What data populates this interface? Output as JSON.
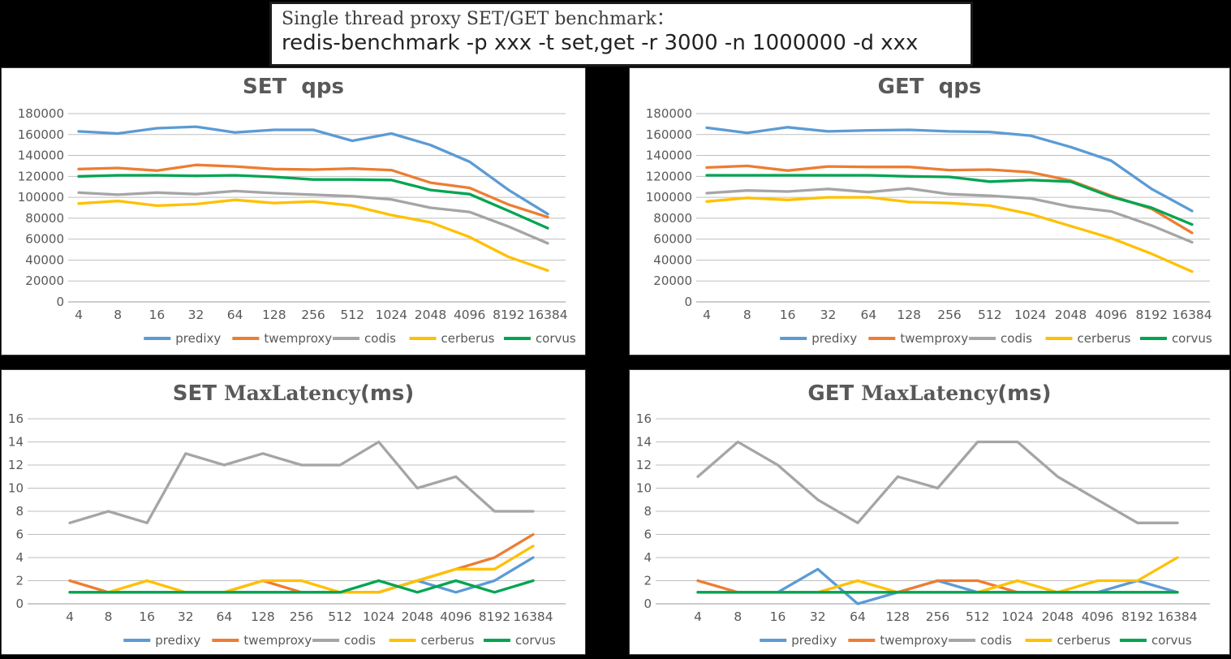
{
  "header": {
    "line1": "Single thread proxy SET/GET benchmark：",
    "line2": "redis-benchmark -p xxx -t set,get -r 3000 -n 1000000 -d xxx"
  },
  "colors": {
    "predixy": "#5B9BD5",
    "twemproxy": "#ED7D31",
    "codis": "#A5A5A5",
    "cerberus": "#FFC000",
    "corvus": "#00A550",
    "axis_text": "#595959",
    "gridline": "#BFBFBF",
    "zero_line": "#999999"
  },
  "legend_items": [
    "predixy",
    "twemproxy",
    "codis",
    "cerberus",
    "corvus"
  ],
  "chart_data": [
    {
      "id": "set_qps",
      "type": "line",
      "title": "SET  qps",
      "title_parts": {
        "t1": "SET  qps",
        "t2": "",
        "t3": ""
      },
      "categories": [
        "4",
        "8",
        "16",
        "32",
        "64",
        "128",
        "256",
        "512",
        "1024",
        "2048",
        "4096",
        "8192",
        "16384"
      ],
      "ylim": [
        0,
        180000
      ],
      "ytick_step": 20000,
      "grid": true,
      "legend_position": "bottom",
      "series": [
        {
          "name": "predixy",
          "values": [
            163000,
            161000,
            166000,
            167500,
            162000,
            164500,
            164500,
            154000,
            161000,
            150000,
            134000,
            107000,
            84000
          ]
        },
        {
          "name": "twemproxy",
          "values": [
            127000,
            128000,
            125500,
            131000,
            129500,
            127000,
            126500,
            127500,
            126000,
            114000,
            109000,
            93000,
            81000
          ]
        },
        {
          "name": "codis",
          "values": [
            104500,
            102500,
            104500,
            103000,
            106000,
            104000,
            102500,
            101000,
            98000,
            90000,
            86000,
            72000,
            56000
          ]
        },
        {
          "name": "cerberus",
          "values": [
            94000,
            96500,
            92000,
            93500,
            97500,
            94500,
            96000,
            92000,
            83000,
            76000,
            62000,
            43000,
            30000
          ]
        },
        {
          "name": "corvus",
          "values": [
            120000,
            121000,
            121000,
            120500,
            121000,
            119500,
            117000,
            117000,
            116500,
            107000,
            103000,
            87000,
            70500
          ]
        }
      ]
    },
    {
      "id": "get_qps",
      "type": "line",
      "title": "GET  qps",
      "title_parts": {
        "t1": "GET  qps",
        "t2": "",
        "t3": ""
      },
      "categories": [
        "4",
        "8",
        "16",
        "32",
        "64",
        "128",
        "256",
        "512",
        "1024",
        "2048",
        "4096",
        "8192",
        "16384"
      ],
      "ylim": [
        0,
        180000
      ],
      "ytick_step": 20000,
      "grid": true,
      "legend_position": "bottom",
      "series": [
        {
          "name": "predixy",
          "values": [
            166500,
            161500,
            167000,
            163000,
            164000,
            164500,
            163000,
            162500,
            159000,
            148000,
            135000,
            108000,
            87000
          ]
        },
        {
          "name": "twemproxy",
          "values": [
            128500,
            130000,
            125500,
            129500,
            129000,
            129000,
            126000,
            126500,
            124000,
            116000,
            101500,
            89000,
            66000
          ]
        },
        {
          "name": "codis",
          "values": [
            104000,
            106500,
            105500,
            108000,
            105000,
            108500,
            103000,
            101500,
            99000,
            91000,
            86500,
            73000,
            57000
          ]
        },
        {
          "name": "cerberus",
          "values": [
            96000,
            99500,
            97500,
            100000,
            100000,
            95500,
            94500,
            92000,
            84000,
            72500,
            61000,
            46000,
            29000
          ]
        },
        {
          "name": "corvus",
          "values": [
            121000,
            121000,
            121000,
            121000,
            121000,
            120000,
            119500,
            115000,
            116500,
            115000,
            100500,
            90000,
            74000
          ]
        }
      ]
    },
    {
      "id": "set_maxlatency",
      "type": "line",
      "title": "SET MaxLatency(ms)",
      "title_parts": {
        "t1": "SET ",
        "t2": "MaxLatency",
        "t3": "(ms)"
      },
      "categories": [
        "4",
        "8",
        "16",
        "32",
        "64",
        "128",
        "256",
        "512",
        "1024",
        "2048",
        "4096",
        "8192",
        "16384"
      ],
      "ylim": [
        0,
        16
      ],
      "ytick_step": 2,
      "grid": true,
      "legend_position": "bottom",
      "series": [
        {
          "name": "predixy",
          "values": [
            1,
            1,
            1,
            1,
            1,
            1,
            1,
            1,
            1,
            2,
            1,
            2,
            4
          ]
        },
        {
          "name": "twemproxy",
          "values": [
            2,
            1,
            1,
            1,
            1,
            2,
            1,
            1,
            1,
            2,
            3,
            4,
            6
          ]
        },
        {
          "name": "codis",
          "values": [
            7,
            8,
            7,
            13,
            12,
            13,
            12,
            12,
            14,
            10,
            11,
            8,
            8
          ]
        },
        {
          "name": "cerberus",
          "values": [
            1,
            1,
            2,
            1,
            1,
            2,
            2,
            1,
            1,
            2,
            3,
            3,
            5
          ]
        },
        {
          "name": "corvus",
          "values": [
            1,
            1,
            1,
            1,
            1,
            1,
            1,
            1,
            2,
            1,
            2,
            1,
            2
          ]
        }
      ]
    },
    {
      "id": "get_maxlatency",
      "type": "line",
      "title": "GET MaxLatency(ms)",
      "title_parts": {
        "t1": "GET ",
        "t2": "MaxLatency",
        "t3": "(ms)"
      },
      "categories": [
        "4",
        "8",
        "16",
        "32",
        "64",
        "128",
        "256",
        "512",
        "1024",
        "2048",
        "4096",
        "8192",
        "16384"
      ],
      "ylim": [
        0,
        16
      ],
      "ytick_step": 2,
      "grid": true,
      "legend_position": "bottom",
      "series": [
        {
          "name": "predixy",
          "values": [
            1,
            1,
            1,
            3,
            0,
            1,
            2,
            1,
            1,
            1,
            1,
            2,
            1
          ]
        },
        {
          "name": "twemproxy",
          "values": [
            2,
            1,
            1,
            1,
            1,
            1,
            2,
            2,
            1,
            1,
            1,
            1,
            1
          ]
        },
        {
          "name": "codis",
          "values": [
            11,
            14,
            12,
            9,
            7,
            11,
            10,
            14,
            14,
            11,
            9,
            7,
            7
          ]
        },
        {
          "name": "cerberus",
          "values": [
            1,
            1,
            1,
            1,
            2,
            1,
            1,
            1,
            2,
            1,
            2,
            2,
            4
          ]
        },
        {
          "name": "corvus",
          "values": [
            1,
            1,
            1,
            1,
            1,
            1,
            1,
            1,
            1,
            1,
            1,
            1,
            1
          ]
        }
      ]
    }
  ]
}
